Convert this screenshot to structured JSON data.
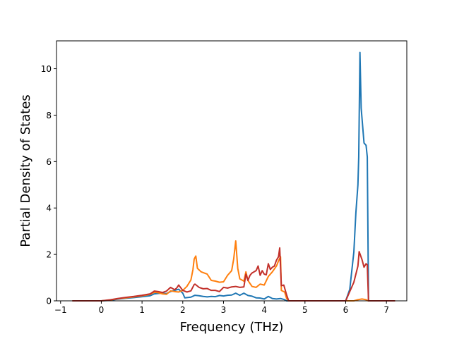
{
  "chart_data": {
    "type": "line",
    "title": "",
    "xlabel": "Frequency (THz)",
    "ylabel": "Partial Density of States",
    "xlim": [
      -1.1,
      7.5
    ],
    "ylim": [
      0,
      11.2
    ],
    "xticks": [
      -1,
      0,
      1,
      2,
      3,
      4,
      5,
      6,
      7
    ],
    "yticks": [
      0,
      2,
      4,
      6,
      8,
      10
    ],
    "grid": false,
    "legend": "none",
    "series": [
      {
        "color": "#1f77b4",
        "points": [
          [
            -0.7,
            0.0
          ],
          [
            0.0,
            0.0
          ],
          [
            0.2,
            0.02
          ],
          [
            0.4,
            0.07
          ],
          [
            0.6,
            0.11
          ],
          [
            0.8,
            0.14
          ],
          [
            1.0,
            0.18
          ],
          [
            1.2,
            0.22
          ],
          [
            1.3,
            0.3
          ],
          [
            1.4,
            0.32
          ],
          [
            1.5,
            0.33
          ],
          [
            1.6,
            0.31
          ],
          [
            1.7,
            0.4
          ],
          [
            1.8,
            0.45
          ],
          [
            1.9,
            0.5
          ],
          [
            2.0,
            0.33
          ],
          [
            2.05,
            0.13
          ],
          [
            2.2,
            0.16
          ],
          [
            2.3,
            0.24
          ],
          [
            2.4,
            0.22
          ],
          [
            2.5,
            0.19
          ],
          [
            2.6,
            0.17
          ],
          [
            2.7,
            0.19
          ],
          [
            2.8,
            0.18
          ],
          [
            2.9,
            0.23
          ],
          [
            3.0,
            0.21
          ],
          [
            3.1,
            0.24
          ],
          [
            3.2,
            0.25
          ],
          [
            3.3,
            0.33
          ],
          [
            3.4,
            0.24
          ],
          [
            3.5,
            0.33
          ],
          [
            3.6,
            0.23
          ],
          [
            3.7,
            0.2
          ],
          [
            3.8,
            0.13
          ],
          [
            3.9,
            0.12
          ],
          [
            4.0,
            0.08
          ],
          [
            4.1,
            0.19
          ],
          [
            4.2,
            0.1
          ],
          [
            4.3,
            0.08
          ],
          [
            4.4,
            0.1
          ],
          [
            4.5,
            0.05
          ],
          [
            4.55,
            0.0
          ],
          [
            6.0,
            0.0
          ],
          [
            6.1,
            0.5
          ],
          [
            6.2,
            2.1
          ],
          [
            6.25,
            3.8
          ],
          [
            6.3,
            5.0
          ],
          [
            6.32,
            6.2
          ],
          [
            6.35,
            10.7
          ],
          [
            6.38,
            8.3
          ],
          [
            6.45,
            6.8
          ],
          [
            6.5,
            6.7
          ],
          [
            6.53,
            6.2
          ],
          [
            6.56,
            0.0
          ],
          [
            7.2,
            0.0
          ]
        ]
      },
      {
        "color": "#ff7f0e",
        "points": [
          [
            -0.7,
            0.0
          ],
          [
            0.0,
            0.0
          ],
          [
            0.2,
            0.03
          ],
          [
            0.4,
            0.09
          ],
          [
            0.6,
            0.13
          ],
          [
            0.8,
            0.17
          ],
          [
            1.0,
            0.22
          ],
          [
            1.2,
            0.28
          ],
          [
            1.3,
            0.37
          ],
          [
            1.4,
            0.35
          ],
          [
            1.5,
            0.3
          ],
          [
            1.6,
            0.28
          ],
          [
            1.7,
            0.43
          ],
          [
            1.8,
            0.4
          ],
          [
            1.9,
            0.38
          ],
          [
            2.0,
            0.45
          ],
          [
            2.1,
            0.62
          ],
          [
            2.2,
            0.9
          ],
          [
            2.25,
            1.35
          ],
          [
            2.28,
            1.8
          ],
          [
            2.32,
            1.93
          ],
          [
            2.36,
            1.4
          ],
          [
            2.45,
            1.25
          ],
          [
            2.6,
            1.15
          ],
          [
            2.7,
            0.88
          ],
          [
            2.8,
            0.85
          ],
          [
            2.9,
            0.8
          ],
          [
            3.0,
            0.82
          ],
          [
            3.1,
            1.1
          ],
          [
            3.2,
            1.3
          ],
          [
            3.25,
            1.8
          ],
          [
            3.3,
            2.58
          ],
          [
            3.35,
            1.4
          ],
          [
            3.4,
            0.95
          ],
          [
            3.5,
            0.85
          ],
          [
            3.55,
            1.25
          ],
          [
            3.6,
            0.88
          ],
          [
            3.7,
            0.62
          ],
          [
            3.8,
            0.58
          ],
          [
            3.9,
            0.72
          ],
          [
            4.0,
            0.68
          ],
          [
            4.1,
            1.05
          ],
          [
            4.2,
            1.25
          ],
          [
            4.3,
            1.5
          ],
          [
            4.35,
            1.72
          ],
          [
            4.4,
            1.9
          ],
          [
            4.42,
            0.45
          ],
          [
            4.5,
            0.38
          ],
          [
            4.55,
            0.1
          ],
          [
            4.6,
            0.0
          ],
          [
            6.2,
            0.0
          ],
          [
            6.3,
            0.05
          ],
          [
            6.4,
            0.08
          ],
          [
            6.5,
            0.05
          ],
          [
            6.55,
            0.0
          ],
          [
            7.2,
            0.0
          ]
        ]
      },
      {
        "color": "#c2302a",
        "points": [
          [
            -0.7,
            0.0
          ],
          [
            0.0,
            0.0
          ],
          [
            0.2,
            0.04
          ],
          [
            0.4,
            0.1
          ],
          [
            0.6,
            0.15
          ],
          [
            0.8,
            0.19
          ],
          [
            1.0,
            0.24
          ],
          [
            1.2,
            0.3
          ],
          [
            1.3,
            0.42
          ],
          [
            1.4,
            0.4
          ],
          [
            1.5,
            0.36
          ],
          [
            1.6,
            0.42
          ],
          [
            1.7,
            0.58
          ],
          [
            1.8,
            0.48
          ],
          [
            1.85,
            0.55
          ],
          [
            1.9,
            0.68
          ],
          [
            2.0,
            0.45
          ],
          [
            2.1,
            0.38
          ],
          [
            2.2,
            0.43
          ],
          [
            2.28,
            0.7
          ],
          [
            2.3,
            0.72
          ],
          [
            2.4,
            0.58
          ],
          [
            2.5,
            0.52
          ],
          [
            2.6,
            0.53
          ],
          [
            2.7,
            0.45
          ],
          [
            2.8,
            0.45
          ],
          [
            2.9,
            0.4
          ],
          [
            3.0,
            0.58
          ],
          [
            3.1,
            0.55
          ],
          [
            3.2,
            0.6
          ],
          [
            3.3,
            0.62
          ],
          [
            3.4,
            0.58
          ],
          [
            3.5,
            0.6
          ],
          [
            3.55,
            1.15
          ],
          [
            3.6,
            0.88
          ],
          [
            3.65,
            1.1
          ],
          [
            3.7,
            1.2
          ],
          [
            3.8,
            1.3
          ],
          [
            3.85,
            1.5
          ],
          [
            3.9,
            1.1
          ],
          [
            3.95,
            1.3
          ],
          [
            4.0,
            1.15
          ],
          [
            4.05,
            1.12
          ],
          [
            4.1,
            1.6
          ],
          [
            4.15,
            1.35
          ],
          [
            4.2,
            1.45
          ],
          [
            4.25,
            1.5
          ],
          [
            4.3,
            1.75
          ],
          [
            4.35,
            1.9
          ],
          [
            4.38,
            2.28
          ],
          [
            4.42,
            0.65
          ],
          [
            4.48,
            0.68
          ],
          [
            4.55,
            0.25
          ],
          [
            4.6,
            0.0
          ],
          [
            6.0,
            0.0
          ],
          [
            6.2,
            0.8
          ],
          [
            6.3,
            1.5
          ],
          [
            6.33,
            2.12
          ],
          [
            6.4,
            1.78
          ],
          [
            6.45,
            1.45
          ],
          [
            6.5,
            1.6
          ],
          [
            6.53,
            1.55
          ],
          [
            6.56,
            0.0
          ],
          [
            7.2,
            0.0
          ]
        ]
      }
    ]
  }
}
